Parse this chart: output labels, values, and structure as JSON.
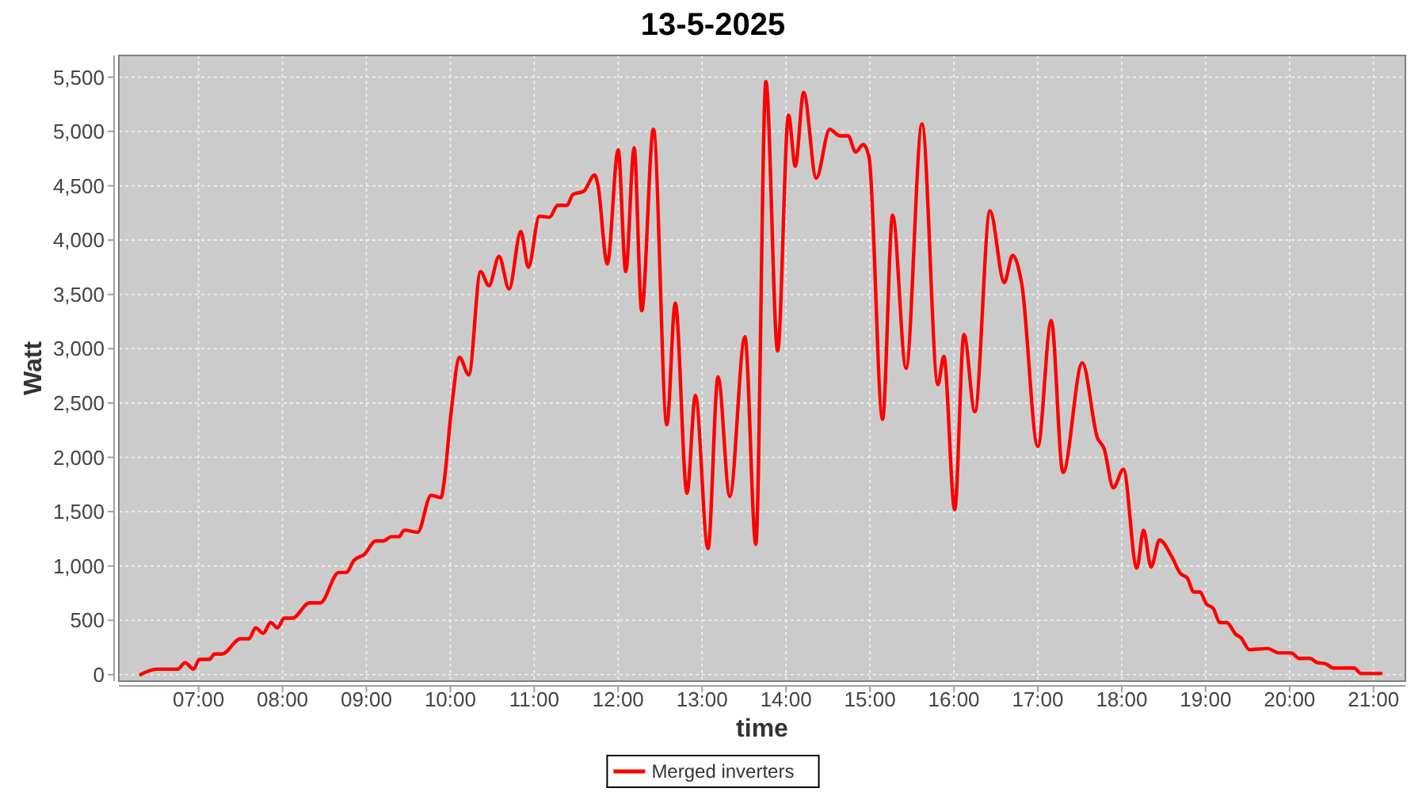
{
  "chart_data": {
    "type": "line",
    "title": "13-5-2025",
    "xlabel": "time",
    "ylabel": "Watt",
    "x": [
      6.31,
      6.5,
      6.75,
      6.84,
      6.94,
      7.01,
      7.13,
      7.19,
      7.28,
      7.5,
      7.6,
      7.68,
      7.77,
      7.86,
      7.94,
      8.02,
      8.12,
      8.32,
      8.45,
      8.67,
      8.76,
      8.85,
      8.98,
      9.11,
      9.2,
      9.3,
      9.39,
      9.45,
      9.61,
      9.77,
      9.89,
      9.92,
      10.01,
      10.11,
      10.22,
      10.36,
      10.46,
      10.58,
      10.7,
      10.84,
      10.93,
      11.06,
      11.18,
      11.28,
      11.39,
      11.46,
      11.59,
      11.72,
      11.76,
      11.87,
      12.0,
      12.09,
      12.19,
      12.28,
      12.42,
      12.58,
      12.68,
      12.82,
      12.92,
      13.07,
      13.19,
      13.33,
      13.51,
      13.64,
      13.76,
      13.9,
      14.03,
      14.11,
      14.21,
      14.36,
      14.52,
      14.64,
      14.74,
      14.83,
      14.92,
      14.99,
      15.15,
      15.27,
      15.43,
      15.62,
      15.81,
      15.88,
      16.01,
      16.12,
      16.25,
      16.43,
      16.6,
      16.7,
      16.81,
      17.0,
      17.16,
      17.3,
      17.53,
      17.71,
      17.79,
      17.9,
      18.02,
      18.18,
      18.26,
      18.35,
      18.45,
      18.6,
      18.7,
      18.78,
      18.86,
      18.93,
      19.01,
      19.09,
      19.17,
      19.25,
      19.36,
      19.42,
      19.52,
      19.74,
      19.87,
      20.02,
      20.11,
      20.24,
      20.33,
      20.43,
      20.52,
      20.77,
      20.85,
      21.09
    ],
    "series": [
      {
        "name": "Merged inverters",
        "color": "#ff0000",
        "values": [
          0,
          50,
          50,
          110,
          50,
          140,
          140,
          190,
          190,
          330,
          330,
          430,
          380,
          480,
          430,
          520,
          520,
          660,
          660,
          940,
          940,
          1050,
          1110,
          1230,
          1230,
          1270,
          1270,
          1330,
          1310,
          1650,
          1630,
          1740,
          2420,
          2920,
          2760,
          3710,
          3580,
          3850,
          3550,
          4080,
          3750,
          4220,
          4210,
          4320,
          4320,
          4420,
          4450,
          4600,
          4500,
          3780,
          4830,
          3710,
          4850,
          3350,
          5020,
          2300,
          3420,
          1670,
          2570,
          1160,
          2740,
          1640,
          3110,
          1200,
          5460,
          2980,
          5150,
          4680,
          5360,
          4570,
          5020,
          4960,
          4960,
          4810,
          4880,
          4760,
          2350,
          4230,
          2820,
          5070,
          2670,
          2930,
          1520,
          3130,
          2420,
          4270,
          3610,
          3860,
          3590,
          2100,
          3260,
          1860,
          2870,
          2180,
          2080,
          1720,
          1890,
          980,
          1330,
          990,
          1240,
          1080,
          930,
          890,
          760,
          760,
          650,
          610,
          480,
          480,
          370,
          340,
          230,
          240,
          200,
          200,
          150,
          150,
          110,
          100,
          60,
          60,
          10,
          10
        ]
      }
    ],
    "xlim": [
      6.05,
      21.38
    ],
    "xticks": [
      {
        "value": 7,
        "label": "07:00"
      },
      {
        "value": 8,
        "label": "08:00"
      },
      {
        "value": 9,
        "label": "09:00"
      },
      {
        "value": 10,
        "label": "10:00"
      },
      {
        "value": 11,
        "label": "11:00"
      },
      {
        "value": 12,
        "label": "12:00"
      },
      {
        "value": 13,
        "label": "13:00"
      },
      {
        "value": 14,
        "label": "14:00"
      },
      {
        "value": 15,
        "label": "15:00"
      },
      {
        "value": 16,
        "label": "16:00"
      },
      {
        "value": 17,
        "label": "17:00"
      },
      {
        "value": 18,
        "label": "18:00"
      },
      {
        "value": 19,
        "label": "19:00"
      },
      {
        "value": 20,
        "label": "20:00"
      },
      {
        "value": 21,
        "label": "21:00"
      }
    ],
    "ylim": [
      -60,
      5700
    ],
    "yticks": [
      0,
      500,
      {
        "value": 1000,
        "label": "1,000"
      },
      {
        "value": 1500,
        "label": "1,500"
      },
      {
        "value": 2000,
        "label": "2,000"
      },
      {
        "value": 2500,
        "label": "2,500"
      },
      {
        "value": 3000,
        "label": "3,000"
      },
      {
        "value": 3500,
        "label": "3,500"
      },
      {
        "value": 4000,
        "label": "4,000"
      },
      {
        "value": 4500,
        "label": "4,500"
      },
      {
        "value": 5000,
        "label": "5,000"
      },
      {
        "value": 5500,
        "label": "5,500"
      }
    ],
    "grid": true,
    "legend": "bottom",
    "line_style": "solid"
  }
}
